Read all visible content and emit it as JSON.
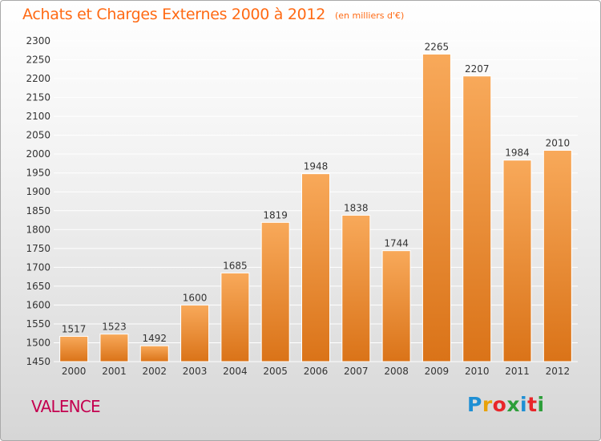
{
  "header": {
    "title": "Achats et Charges Externes 2000 à 2012",
    "subtitle": "(en milliers d'€)"
  },
  "footer": {
    "place": "VALENCE",
    "logo_letters": [
      "P",
      "r",
      "o",
      "x",
      "i",
      "t",
      "i"
    ],
    "logo_colors": [
      "#1e8fd4",
      "#e8a20a",
      "#e8262a",
      "#2d9e3a",
      "#1e8fd4",
      "#e8262a",
      "#2d9e3a"
    ]
  },
  "colors": {
    "bar_top": "#f8a95a",
    "bar_bottom": "#da7318",
    "bar_edge": "#ffffff",
    "grid": "#ffffff",
    "axis_text": "#333333",
    "title": "#ff6a14",
    "place": "#c4004f"
  },
  "chart_data": {
    "type": "bar",
    "title": "Achats et Charges Externes 2000 à 2012",
    "subtitle": "(en milliers d'€)",
    "xlabel": "",
    "ylabel": "",
    "categories": [
      "2000",
      "2001",
      "2002",
      "2003",
      "2004",
      "2005",
      "2006",
      "2007",
      "2008",
      "2009",
      "2010",
      "2011",
      "2012"
    ],
    "values": [
      1517,
      1523,
      1492,
      1600,
      1685,
      1819,
      1948,
      1838,
      1744,
      2265,
      2207,
      1984,
      2010
    ],
    "ylim": [
      1450,
      2300
    ],
    "yticks": [
      1450,
      1500,
      1550,
      1600,
      1650,
      1700,
      1750,
      1800,
      1850,
      1900,
      1950,
      2000,
      2050,
      2100,
      2150,
      2200,
      2250,
      2300
    ],
    "grid": true,
    "legend": "none"
  }
}
